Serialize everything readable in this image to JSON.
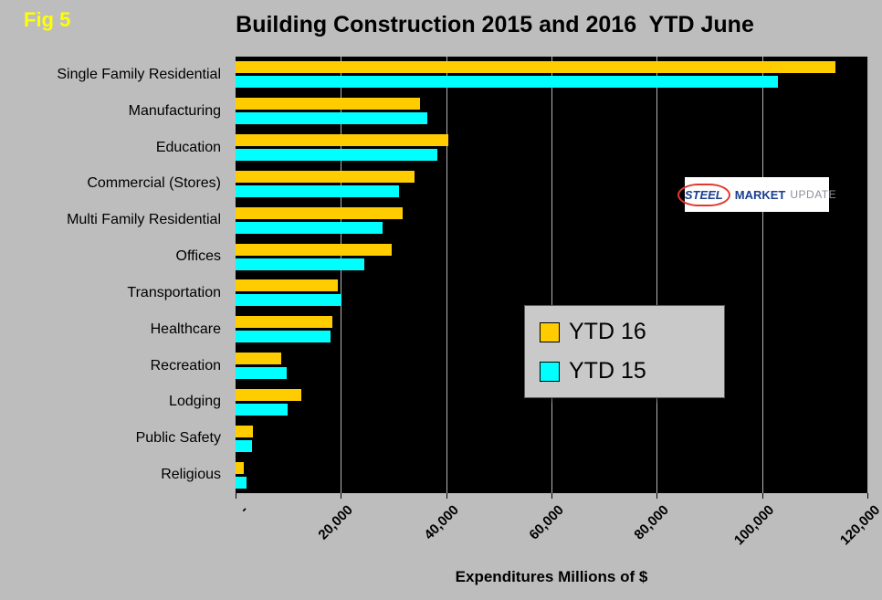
{
  "fig_label": "Fig 5",
  "logo": {
    "word1": "STEEL",
    "word2": "MARKET",
    "word3": "UPDATE"
  },
  "chart_data": {
    "type": "bar",
    "orientation": "horizontal",
    "title": "Building Construction 2015 and 2016  YTD June",
    "xlabel": "Expenditures Millions of $",
    "xlim": [
      0,
      120000
    ],
    "grid": true,
    "plot_background": "#000000",
    "page_background": "#bdbdbd",
    "legend_position": "inside middle-right",
    "categories": [
      "Single Family Residential",
      "Manufacturing",
      "Education",
      "Commercial (Stores)",
      "Multi Family Residential",
      "Offices",
      "Transportation",
      "Healthcare",
      "Recreation",
      "Lodging",
      "Public Safety",
      "Religious"
    ],
    "series": [
      {
        "name": "YTD 16",
        "color": "#FFCC00",
        "values": [
          114000,
          35000,
          40400,
          34000,
          31800,
          29700,
          19500,
          18400,
          8700,
          12500,
          3300,
          1600
        ]
      },
      {
        "name": "YTD 15",
        "color": "#00FFFF",
        "values": [
          103000,
          36500,
          38400,
          31000,
          28000,
          24500,
          20200,
          18000,
          9700,
          9800,
          3100,
          2100
        ]
      }
    ],
    "x_ticks": {
      "values": [
        0,
        20000,
        40000,
        60000,
        80000,
        100000,
        120000
      ],
      "labels": [
        "-",
        "20,000",
        "40,000",
        "60,000",
        "80,000",
        "100,000",
        "120,000"
      ]
    }
  }
}
